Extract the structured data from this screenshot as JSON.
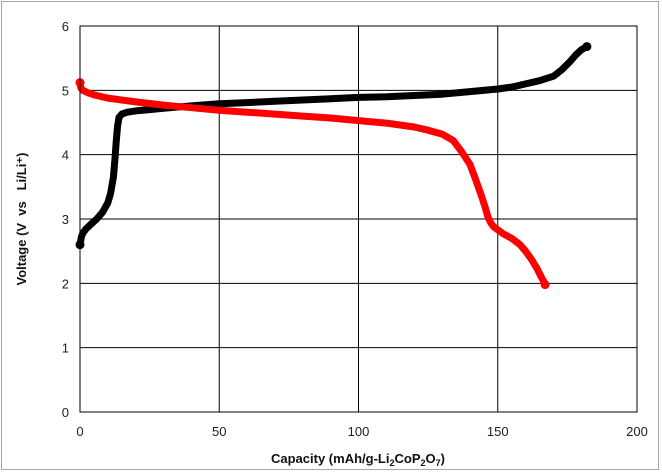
{
  "chart_data": {
    "type": "line",
    "title": "",
    "xlabel": "Capacity (mAh/g-Li2CoP2O7)",
    "xlabel_parts": [
      {
        "t": "Capacity (mAh/g-Li",
        "sub": false
      },
      {
        "t": "2",
        "sub": true
      },
      {
        "t": "CoP",
        "sub": false
      },
      {
        "t": "2",
        "sub": true
      },
      {
        "t": "O",
        "sub": false
      },
      {
        "t": "7",
        "sub": true
      },
      {
        "t": ")",
        "sub": false
      }
    ],
    "ylabel": "Voltage (V  vs   Li/Li⁺)",
    "xlim": [
      0,
      200
    ],
    "ylim": [
      0,
      6
    ],
    "xticks": [
      0,
      50,
      100,
      150,
      200
    ],
    "yticks": [
      0,
      1,
      2,
      3,
      4,
      5,
      6
    ],
    "grid": true,
    "legend": "none",
    "series": [
      {
        "color": "#000000",
        "x": [
          0,
          0.5,
          1,
          2,
          4,
          6,
          8,
          10,
          11,
          12,
          12.5,
          13,
          13.5,
          14,
          15,
          17,
          20,
          25,
          30,
          40,
          50,
          60,
          70,
          80,
          90,
          100,
          110,
          120,
          130,
          140,
          150,
          155,
          160,
          165,
          170,
          173,
          176,
          178,
          180,
          182
        ],
        "y": [
          2.6,
          2.72,
          2.78,
          2.84,
          2.92,
          3.0,
          3.1,
          3.25,
          3.4,
          3.65,
          3.9,
          4.2,
          4.45,
          4.58,
          4.63,
          4.66,
          4.68,
          4.7,
          4.72,
          4.76,
          4.79,
          4.81,
          4.83,
          4.85,
          4.87,
          4.89,
          4.9,
          4.92,
          4.94,
          4.98,
          5.02,
          5.05,
          5.1,
          5.15,
          5.22,
          5.32,
          5.45,
          5.55,
          5.63,
          5.68
        ]
      },
      {
        "color": "#ff0000",
        "x": [
          0,
          0.3,
          1,
          3,
          5,
          10,
          20,
          30,
          40,
          50,
          60,
          70,
          80,
          90,
          100,
          110,
          120,
          125,
          130,
          134,
          137,
          140,
          142,
          144,
          145.5,
          146.5,
          147.5,
          148.5,
          150,
          152,
          155,
          158,
          160,
          162,
          164,
          165.5,
          166.5,
          167
        ],
        "y": [
          5.12,
          5.04,
          5.0,
          4.96,
          4.93,
          4.88,
          4.82,
          4.77,
          4.73,
          4.69,
          4.66,
          4.63,
          4.6,
          4.57,
          4.53,
          4.49,
          4.43,
          4.38,
          4.32,
          4.22,
          4.05,
          3.85,
          3.62,
          3.38,
          3.18,
          3.03,
          2.94,
          2.88,
          2.83,
          2.77,
          2.7,
          2.6,
          2.5,
          2.38,
          2.24,
          2.11,
          2.03,
          1.98
        ]
      }
    ]
  }
}
